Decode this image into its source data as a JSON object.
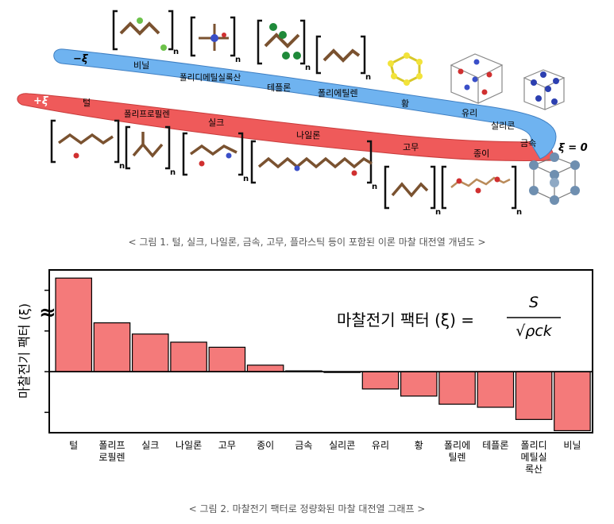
{
  "figure1": {
    "caption": "< 그림 1. 털, 실크, 나일론, 금속, 고무, 플라스틱 등이 포함된 이론 마찰 대전열 개념도 >",
    "neg_label": "−ξ",
    "pos_label": "+ξ",
    "zero_label": "ξ = 0",
    "subscript": "n",
    "band_colors": {
      "negative": "#6fb3f0",
      "positive": "#ef5a5a"
    },
    "negative_labels": [
      "비닐",
      "폴리디메틸실록산",
      "테플론",
      "폴리에틸렌",
      "황",
      "유리",
      "실리콘"
    ],
    "middle_label": "금속",
    "positive_labels": [
      "털",
      "폴리프로필렌",
      "실크",
      "나일론",
      "고무",
      "종이"
    ]
  },
  "figure2": {
    "caption": "< 그림 2. 마찰전기 팩터로 정량화된 마찰 대전열 그래프 >",
    "formula": {
      "lhs": "마찰전기 팩터 (ξ) =",
      "numerator": "S",
      "denominator": "√ρck"
    },
    "axis_break": "≈"
  },
  "chart_data": {
    "type": "bar",
    "ylabel": "마찰전기 팩터 (ξ)",
    "categories": [
      "털",
      "폴리프\n로필렌",
      "실크",
      "나일론",
      "고무",
      "종이",
      "금속",
      "실리콘",
      "유리",
      "황",
      "폴리에\n틸렌",
      "테플론",
      "폴리디\n메틸실\n록산",
      "비닐"
    ],
    "values": [
      4.6,
      2.4,
      1.85,
      1.45,
      1.2,
      0.32,
      0.04,
      -0.04,
      -0.85,
      -1.2,
      -1.6,
      -1.75,
      -2.35,
      -2.9
    ],
    "ylim": [
      -3.0,
      5.0
    ],
    "bar_color": "#f47a7a",
    "grid": false
  }
}
